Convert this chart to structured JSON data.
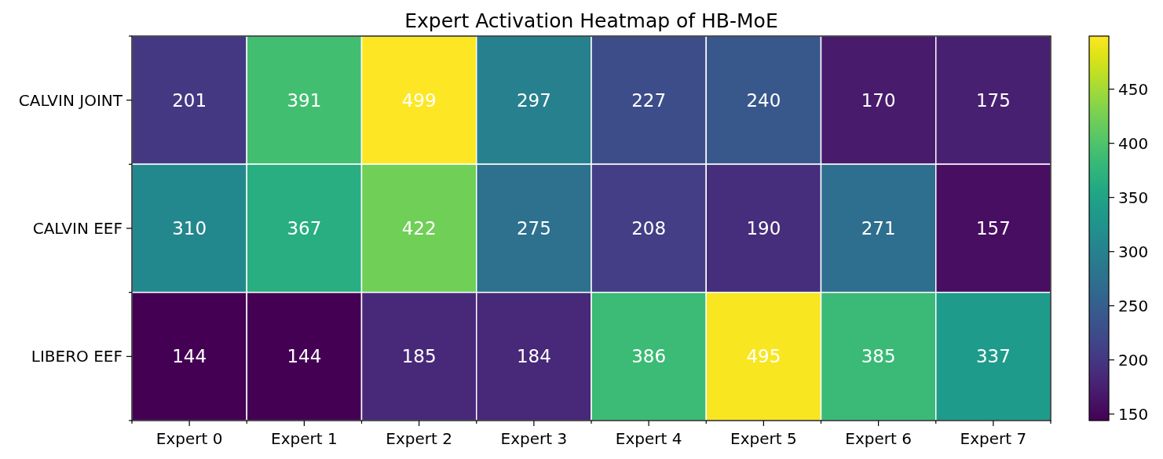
{
  "chart_data": {
    "type": "heatmap",
    "title": "Expert Activation Heatmap of HB-MoE",
    "categories": [
      "Expert 0",
      "Expert 1",
      "Expert 2",
      "Expert 3",
      "Expert 4",
      "Expert 5",
      "Expert 6",
      "Expert 7"
    ],
    "y_categories": [
      "CALVIN JOINT",
      "CALVIN EEF",
      "LIBERO EEF"
    ],
    "cells": [
      [
        201,
        391,
        499,
        297,
        227,
        240,
        170,
        175
      ],
      [
        310,
        367,
        422,
        275,
        208,
        190,
        271,
        157
      ],
      [
        144,
        144,
        185,
        184,
        386,
        495,
        385,
        337
      ]
    ],
    "clim": [
      144,
      499
    ],
    "cticks": [
      150,
      200,
      250,
      300,
      350,
      400,
      450
    ],
    "data_labels": true
  }
}
